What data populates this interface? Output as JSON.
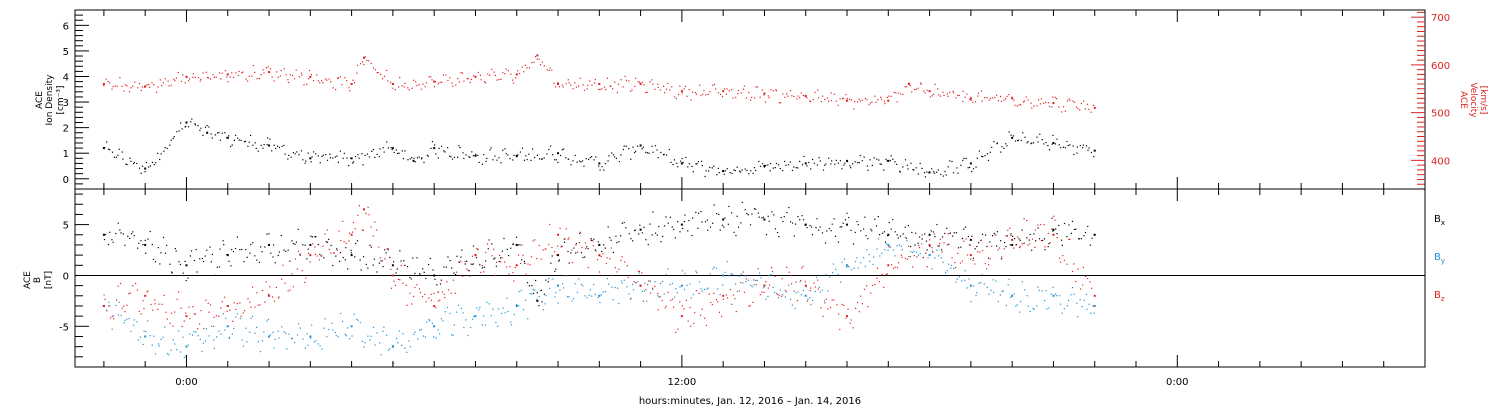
{
  "chart_data": [
    {
      "type": "scatter",
      "panel": "top",
      "ylabel": "ACE Ion Density [cm⁻³]",
      "ylabel_lines": [
        "ACE",
        "Ion Density",
        "[cm⁻³]"
      ],
      "ylim": [
        -0.4,
        6.6
      ],
      "y_ticks": [
        0,
        1,
        2,
        3,
        4,
        5,
        6
      ],
      "y_tick_labels": [
        "0",
        "1",
        "2",
        "3",
        "4",
        "5",
        "6"
      ],
      "y2label": "ACE Velocity [km/s]",
      "y2label_lines": [
        "ACE",
        "Velocity",
        "[km/s]"
      ],
      "y2lim": [
        340,
        715
      ],
      "y2_ticks": [
        400,
        500,
        600,
        700
      ],
      "y2_tick_labels": [
        "400",
        "500",
        "600",
        "700"
      ],
      "series": [
        {
          "color": "#000000",
          "axis": "left",
          "x": [
            -2.0,
            -1.0,
            0.0,
            0.5,
            1.0,
            2.0,
            3.0,
            4.0,
            5.0,
            5.5,
            6.0,
            7.0,
            8.0,
            9.0,
            10.0,
            11.0,
            12.0,
            13.0,
            14.0,
            15.0,
            16.0,
            17.0,
            18.0,
            19.0,
            20.0,
            21.0,
            22.0
          ],
          "y": [
            1.2,
            0.4,
            2.2,
            1.8,
            1.6,
            1.3,
            0.8,
            0.8,
            1.2,
            0.7,
            1.2,
            0.9,
            0.9,
            1.0,
            0.6,
            1.3,
            0.6,
            0.3,
            0.5,
            0.6,
            0.7,
            0.7,
            0.25,
            0.6,
            1.6,
            1.4,
            1.1
          ]
        },
        {
          "color": "#e02020",
          "axis": "right",
          "x": [
            -2.0,
            -1.0,
            0.0,
            1.0,
            2.0,
            3.0,
            4.0,
            4.3,
            5.0,
            6.0,
            7.0,
            8.0,
            8.5,
            9.0,
            10.0,
            11.0,
            12.0,
            13.0,
            14.0,
            15.0,
            16.0,
            17.0,
            17.5,
            18.0,
            19.0,
            20.0,
            21.0,
            22.0
          ],
          "y": [
            560,
            555,
            575,
            580,
            585,
            575,
            560,
            615,
            560,
            565,
            575,
            580,
            620,
            560,
            560,
            560,
            545,
            545,
            540,
            535,
            525,
            525,
            560,
            545,
            530,
            530,
            520,
            510
          ]
        }
      ]
    },
    {
      "type": "scatter",
      "panel": "bottom",
      "ylabel": "ACE B [nT]",
      "ylabel_lines": [
        "ACE",
        "B",
        "[nT]"
      ],
      "ylim": [
        -9,
        8.5
      ],
      "y_ticks": [
        -5,
        0,
        5
      ],
      "y_tick_labels": [
        "-5",
        "0",
        "5"
      ],
      "zero_line": true,
      "series": [
        {
          "name": "Bx",
          "label_main": "B",
          "label_sub": "x",
          "color": "#000000",
          "x": [
            -2.0,
            -1.0,
            0.0,
            1.0,
            2.0,
            3.0,
            4.0,
            5.0,
            6.0,
            7.0,
            8.0,
            8.5,
            9.0,
            10.0,
            11.0,
            12.0,
            13.0,
            14.0,
            15.0,
            16.0,
            17.0,
            18.0,
            19.0,
            20.0,
            21.0,
            22.0
          ],
          "y": [
            4.0,
            3.0,
            1.0,
            2.0,
            3.0,
            3.0,
            2.0,
            1.0,
            0.0,
            2.0,
            3.0,
            -2.5,
            2.0,
            3.0,
            4.5,
            5.0,
            5.5,
            5.5,
            5.0,
            5.0,
            4.0,
            4.0,
            3.5,
            3.0,
            4.5,
            4.0
          ]
        },
        {
          "name": "By",
          "label_main": "B",
          "label_sub": "y",
          "color": "#2090d0",
          "x": [
            -2.0,
            -1.0,
            0.0,
            1.0,
            2.0,
            3.0,
            4.0,
            5.0,
            6.0,
            7.0,
            8.0,
            9.0,
            10.0,
            11.0,
            12.0,
            13.0,
            14.0,
            15.0,
            16.0,
            17.0,
            18.0,
            19.0,
            20.0,
            21.0,
            22.0
          ],
          "y": [
            -3.0,
            -6.0,
            -7.0,
            -5.0,
            -6.0,
            -6.0,
            -5.0,
            -7.0,
            -5.0,
            -4.0,
            -3.0,
            -1.0,
            -2.0,
            -1.0,
            -1.0,
            0.0,
            -1.0,
            -2.0,
            1.0,
            3.0,
            2.0,
            -1.0,
            -2.0,
            -2.0,
            -3.0
          ]
        },
        {
          "name": "Bz",
          "label_main": "B",
          "label_sub": "z",
          "color": "#e02020",
          "x": [
            -2.0,
            -1.0,
            0.0,
            1.0,
            2.0,
            3.0,
            4.0,
            4.3,
            5.0,
            6.0,
            7.0,
            8.0,
            9.0,
            10.0,
            11.0,
            12.0,
            13.0,
            14.0,
            15.0,
            16.0,
            17.0,
            18.0,
            19.0,
            20.0,
            21.0,
            22.0
          ],
          "y": [
            -3.0,
            -2.0,
            -4.0,
            -3.0,
            -2.0,
            2.0,
            4.0,
            6.5,
            0.0,
            -3.0,
            2.0,
            1.0,
            4.0,
            2.0,
            -1.0,
            -4.0,
            -2.0,
            -1.0,
            -1.0,
            -4.0,
            1.0,
            3.0,
            2.0,
            3.5,
            4.0,
            -2.0
          ]
        }
      ]
    }
  ],
  "x_axis": {
    "xlim": [
      -2.7,
      30.0
    ],
    "ticks": [
      0,
      12,
      24
    ],
    "tick_labels": [
      "0:00",
      "12:00",
      "0:00"
    ],
    "minor_step": 1,
    "label": "hours:minutes, Jan. 12, 2016 – Jan. 14, 2016"
  },
  "colors": {
    "density": "#000000",
    "velocity": "#e02020",
    "bx": "#000000",
    "by": "#2090d0",
    "bz": "#e02020",
    "axis": "#000000"
  }
}
